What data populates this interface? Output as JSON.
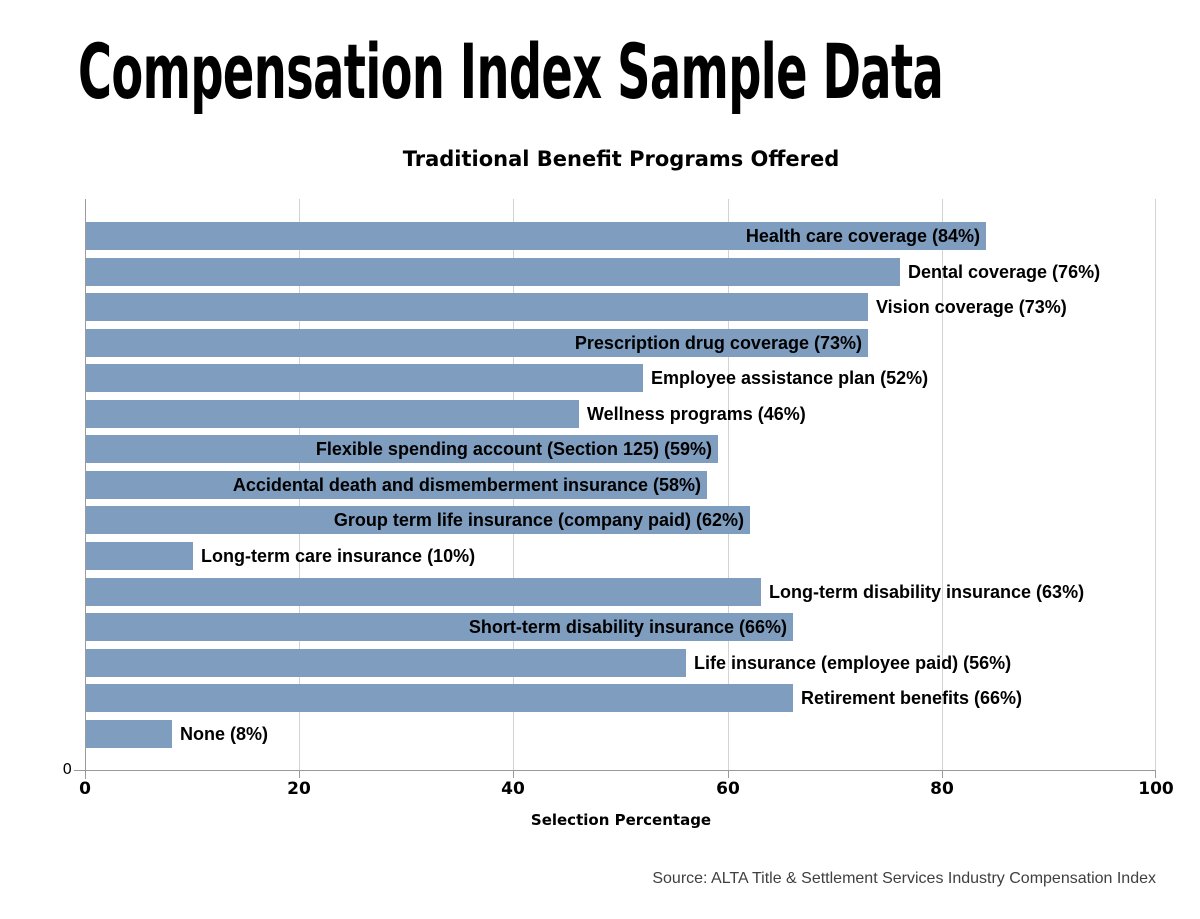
{
  "page": {
    "title": "Compensation Index Sample Data",
    "source": "Source: ALTA Title & Settlement Services Industry Compensation Index"
  },
  "chart_data": {
    "type": "bar",
    "orientation": "horizontal",
    "title": "Traditional Benefit Programs Offered",
    "xlabel": "Selection Percentage",
    "xlim": [
      0,
      100
    ],
    "xticks": [
      0,
      20,
      40,
      60,
      80,
      100
    ],
    "grid": true,
    "yaxis_zero_label": "0",
    "categories": [
      "Health care coverage",
      "Dental coverage",
      "Vision coverage",
      "Prescription drug coverage",
      "Employee assistance plan",
      "Wellness programs",
      "Flexible spending account (Section 125)",
      "Accidental death and dismemberment insurance",
      "Group term life insurance (company paid)",
      "Long-term care insurance",
      "Long-term disability insurance",
      "Short-term disability insurance",
      "Life insurance (employee paid)",
      "Retirement benefits",
      "None"
    ],
    "values": [
      84,
      76,
      73,
      73,
      52,
      46,
      59,
      58,
      62,
      10,
      63,
      66,
      56,
      66,
      8
    ],
    "labels": [
      "Health care coverage (84%)",
      "Dental coverage (76%)",
      "Vision coverage (73%)",
      "Prescription drug coverage (73%)",
      "Employee assistance plan (52%)",
      "Wellness programs (46%)",
      "Flexible spending account (Section 125) (59%)",
      "Accidental death and dismemberment insurance (58%)",
      "Group term life insurance (company paid) (62%)",
      "Long-term care insurance (10%)",
      "Long-term disability insurance (63%)",
      "Short-term disability insurance (66%)",
      "Life insurance (employee paid) (56%)",
      "Retirement benefits (66%)",
      "None (8%)"
    ],
    "label_placement": [
      "inside",
      "outside",
      "outside",
      "inside",
      "outside",
      "outside",
      "inside",
      "inside",
      "inside",
      "outside",
      "outside",
      "inside",
      "outside",
      "outside",
      "outside"
    ],
    "colors": {
      "bar": "#7e9dbf",
      "gridline": "#d3d3d3",
      "axis": "#9a9a9a",
      "text": "#000000",
      "source_text": "#404040"
    }
  }
}
